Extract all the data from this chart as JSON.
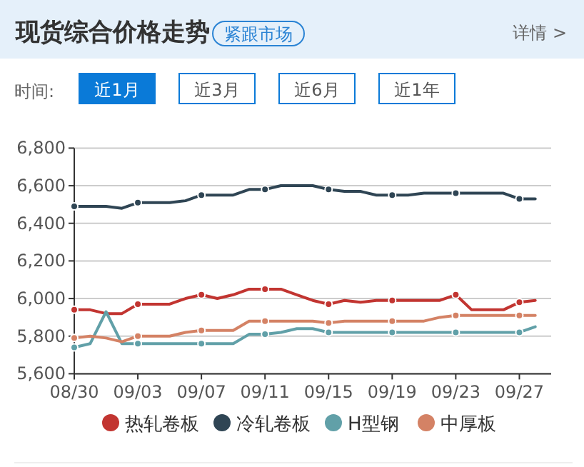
{
  "chart_data": {
    "type": "line",
    "title": "现货综合价格走势",
    "annotations": [
      "紧跟市场",
      "详情 >",
      "时间:",
      "近1月",
      "近3月",
      "近6月",
      "近1年"
    ],
    "categories": [
      "08/30",
      null,
      null,
      null,
      "09/03",
      null,
      null,
      null,
      "09/07",
      null,
      null,
      null,
      "09/11",
      null,
      null,
      null,
      "09/15",
      null,
      null,
      null,
      "09/19",
      null,
      null,
      null,
      "09/23",
      null,
      null,
      null,
      "09/27",
      null
    ],
    "ylim": [
      5600,
      6800
    ],
    "yticks": [
      {
        "value": 5600,
        "label": "5,600"
      },
      {
        "value": 5800,
        "label": "5,800"
      },
      {
        "value": 6000,
        "label": "6,000"
      },
      {
        "value": 6200,
        "label": "6,200"
      },
      {
        "value": 6400,
        "label": "6,400"
      },
      {
        "value": 6600,
        "label": "6,600"
      },
      {
        "value": 6800,
        "label": "6,800"
      }
    ],
    "grid": "y",
    "legend": "bottom",
    "line_style": "solid",
    "series": [
      {
        "name": "热轧卷板",
        "color": "#c23531",
        "values": [
          5940,
          5940,
          5920,
          5920,
          5970,
          5970,
          5970,
          6000,
          6020,
          6000,
          6020,
          6050,
          6050,
          6050,
          6020,
          5990,
          5970,
          5990,
          5980,
          5990,
          5990,
          5990,
          5990,
          5990,
          6020,
          5940,
          5940,
          5940,
          5980,
          5990
        ]
      },
      {
        "name": "冷轧卷板",
        "color": "#2f4554",
        "values": [
          6490,
          6490,
          6490,
          6480,
          6510,
          6510,
          6510,
          6520,
          6550,
          6550,
          6550,
          6580,
          6580,
          6600,
          6600,
          6600,
          6580,
          6570,
          6570,
          6550,
          6550,
          6550,
          6560,
          6560,
          6560,
          6560,
          6560,
          6560,
          6530,
          6530
        ]
      },
      {
        "name": "H型钢",
        "color": "#61a0a8",
        "values": [
          5740,
          5760,
          5930,
          5760,
          5760,
          5760,
          5760,
          5760,
          5760,
          5760,
          5760,
          5810,
          5810,
          5820,
          5840,
          5840,
          5820,
          5820,
          5820,
          5820,
          5820,
          5820,
          5820,
          5820,
          5820,
          5820,
          5820,
          5820,
          5820,
          5850
        ]
      },
      {
        "name": "中厚板",
        "color": "#d48265",
        "values": [
          5790,
          5800,
          5790,
          5770,
          5800,
          5800,
          5800,
          5820,
          5830,
          5830,
          5830,
          5880,
          5880,
          5880,
          5880,
          5880,
          5870,
          5880,
          5880,
          5880,
          5880,
          5880,
          5880,
          5900,
          5910,
          5910,
          5910,
          5910,
          5910,
          5910
        ]
      }
    ]
  }
}
